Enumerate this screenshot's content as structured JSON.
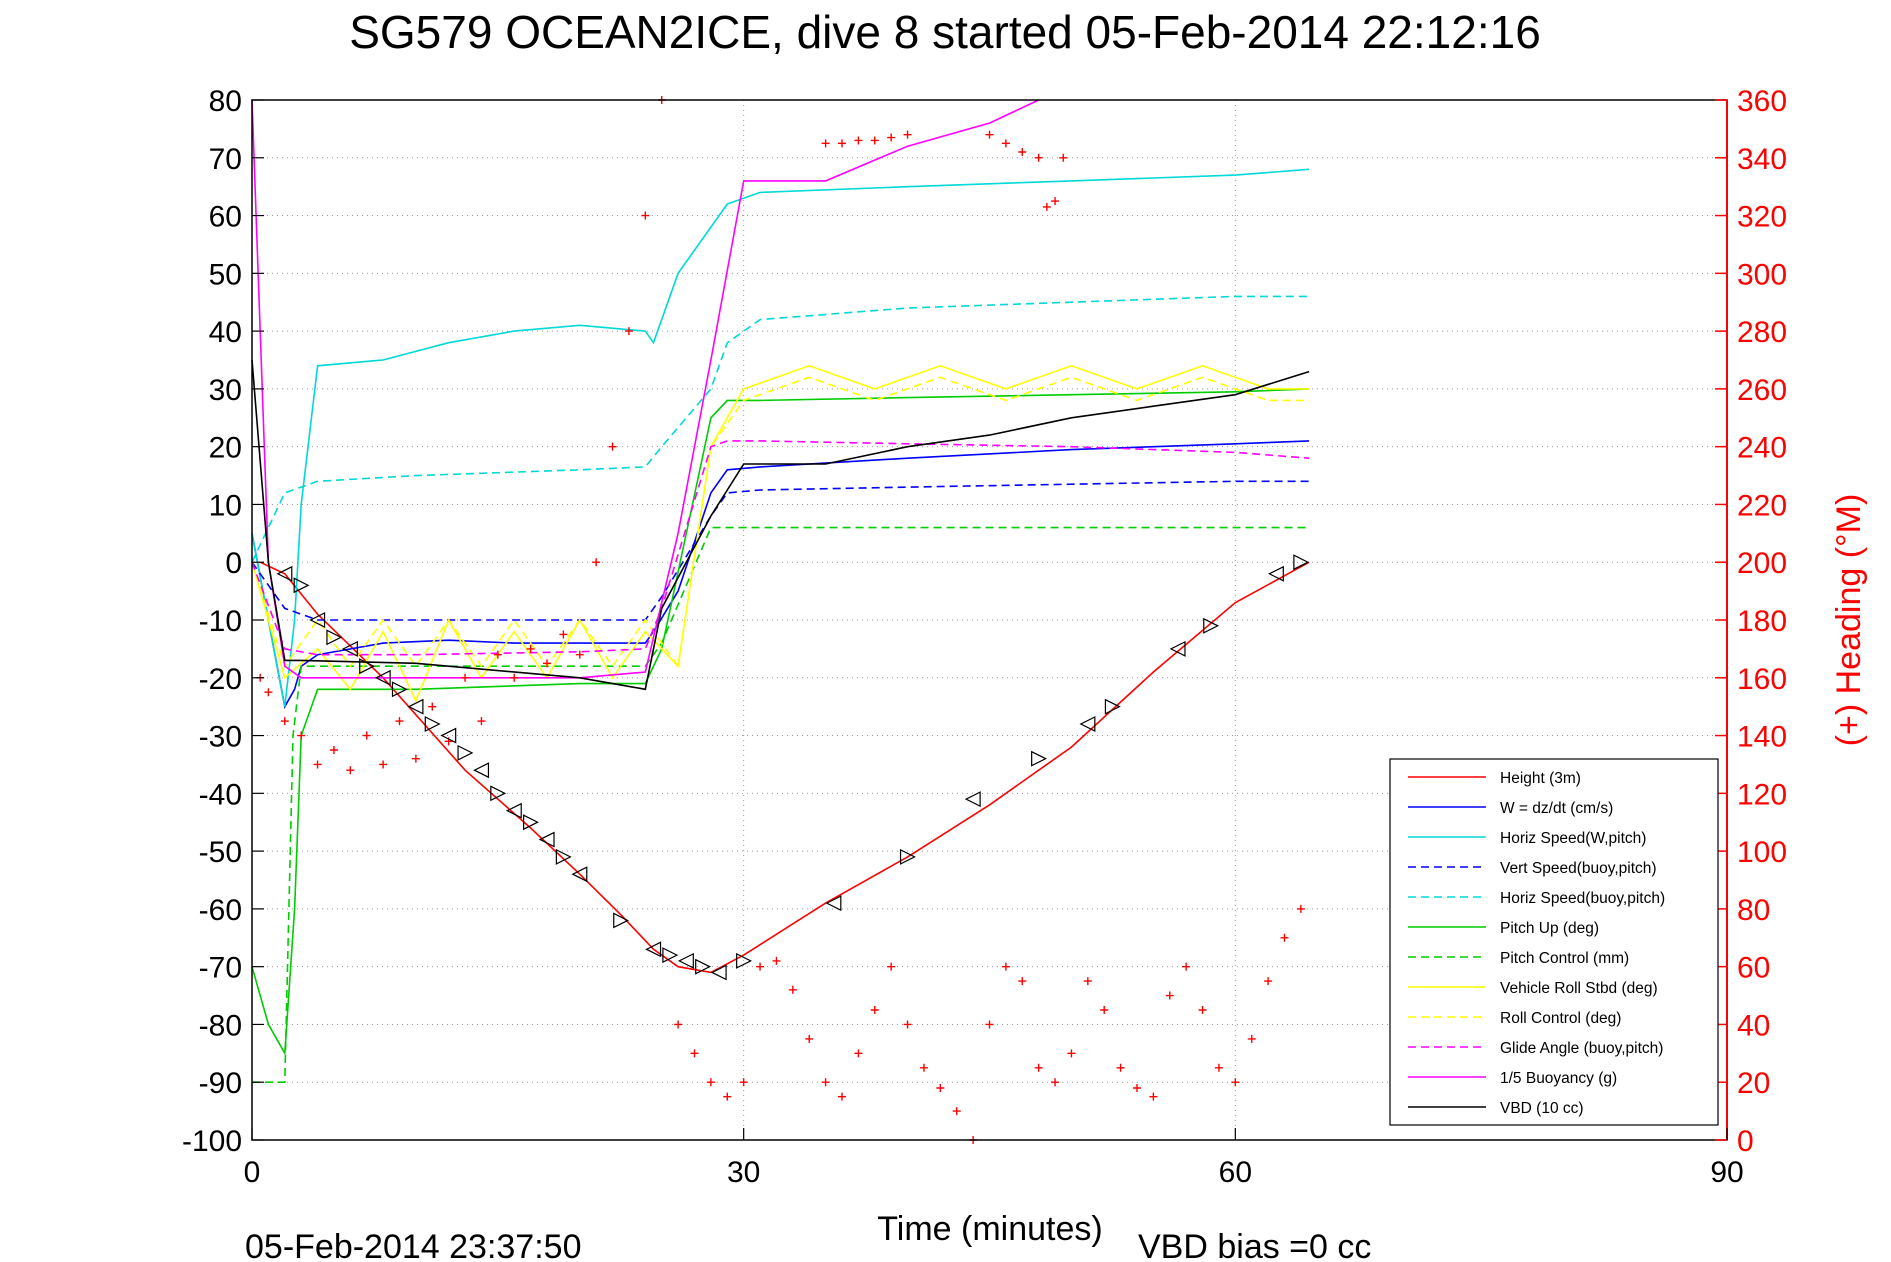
{
  "chart_data": {
    "type": "line",
    "title": "SG579 OCEAN2ICE, dive 8 started 05-Feb-2014 22:12:16",
    "xlabel": "Time (minutes)",
    "ylabel_right": "(+) Heading (°M)",
    "footer_date": "05-Feb-2014 23:37:50",
    "footer_note": "VBD bias =0 cc",
    "xlim": [
      0,
      90
    ],
    "ylim": [
      -100,
      80
    ],
    "y2lim": [
      0,
      360
    ],
    "x_ticks": [
      0,
      30,
      60,
      90
    ],
    "y_ticks": [
      80,
      70,
      60,
      50,
      40,
      30,
      20,
      10,
      0,
      -10,
      -20,
      -30,
      -40,
      -50,
      -60,
      -70,
      -80,
      -90,
      -100
    ],
    "y2_ticks": [
      360,
      340,
      320,
      300,
      280,
      260,
      240,
      220,
      200,
      180,
      160,
      140,
      120,
      100,
      80,
      60,
      40,
      20,
      0
    ],
    "grid": true,
    "legend_position": "bottom-right",
    "colors": {
      "axis_right": "#ff0000",
      "heading": "#ff0000"
    },
    "series": [
      {
        "name": "Height (3m)",
        "color": "#ff0000",
        "dash": false,
        "x": [
          0.5,
          2,
          4,
          8,
          13,
          17,
          20,
          22.5,
          24.5,
          26,
          28,
          30,
          35,
          40,
          45,
          50,
          55,
          60,
          64.5
        ],
        "y": [
          0,
          -2,
          -9,
          -20,
          -36,
          -46,
          -54,
          -61,
          -67,
          -70,
          -71,
          -68,
          -59,
          -51,
          -42,
          -32,
          -19,
          -7,
          0
        ]
      },
      {
        "name": "W = dz/dt (cm/s)",
        "color": "#0000ff",
        "dash": false,
        "x": [
          0,
          1,
          2,
          2.6,
          3,
          4,
          8,
          12,
          16,
          20,
          24,
          24.5,
          26,
          28,
          29,
          31,
          40,
          50,
          60,
          64.5
        ],
        "y": [
          5,
          -10,
          -25,
          -22,
          -18,
          -16,
          -14,
          -13.5,
          -14,
          -14,
          -14,
          -12,
          -5,
          12,
          16,
          16.5,
          18,
          19.5,
          20.5,
          21
        ]
      },
      {
        "name": "Horiz Speed(W,pitch)",
        "color": "#00d8d8",
        "dash": false,
        "x": [
          0,
          1,
          2,
          2.6,
          3,
          4,
          8,
          12,
          16,
          20,
          24,
          24.5,
          26,
          28,
          29,
          31,
          40,
          50,
          60,
          64.5
        ],
        "y": [
          5,
          -10,
          -25,
          -10,
          10,
          34,
          35,
          38,
          40,
          41,
          40,
          38,
          50,
          58,
          62,
          64,
          65,
          66,
          67,
          68
        ]
      },
      {
        "name": "Vert Speed(buoy,pitch)",
        "color": "#0000ff",
        "dash": true,
        "x": [
          0,
          2,
          4,
          10,
          20,
          24,
          25,
          28,
          29,
          31,
          40,
          50,
          60,
          64.5
        ],
        "y": [
          0,
          -8,
          -10,
          -10,
          -10,
          -10,
          -6,
          8,
          12,
          12.5,
          13,
          13.5,
          14,
          14
        ]
      },
      {
        "name": "Horiz Speed(buoy,pitch)",
        "color": "#00d8d8",
        "dash": true,
        "x": [
          0,
          2,
          4,
          10,
          20,
          24,
          25,
          28,
          29,
          31,
          40,
          50,
          60,
          64.5
        ],
        "y": [
          0,
          12,
          14,
          15,
          16,
          16.5,
          20,
          30,
          38,
          42,
          44,
          45,
          46,
          46
        ]
      },
      {
        "name": "Pitch Up (deg)",
        "color": "#00cc00",
        "dash": false,
        "x": [
          0,
          1,
          2,
          2.6,
          3,
          4,
          10,
          20,
          24,
          25,
          28,
          29,
          31,
          40,
          50,
          60,
          64.5
        ],
        "y": [
          -70,
          -80,
          -85,
          -60,
          -30,
          -22,
          -22,
          -21,
          -21,
          -15,
          25,
          28,
          28,
          28.5,
          29,
          29.5,
          30
        ]
      },
      {
        "name": "Pitch Control (mm)",
        "color": "#00cc00",
        "dash": true,
        "x": [
          0,
          2,
          2.5,
          3,
          24,
          25,
          28,
          30,
          64.5
        ],
        "y": [
          -90,
          -90,
          -30,
          -18,
          -18,
          -14,
          6,
          6,
          6
        ]
      },
      {
        "name": "Vehicle Roll Stbd (deg)",
        "color": "#ffff00",
        "dash": false,
        "x": [
          0,
          1,
          2,
          4,
          6,
          8,
          10,
          12,
          14,
          16,
          18,
          20,
          22,
          24,
          26,
          28,
          30,
          34,
          38,
          42,
          46,
          50,
          54,
          58,
          62,
          64.5
        ],
        "y": [
          0,
          -10,
          -20,
          -15,
          -22,
          -12,
          -24,
          -10,
          -20,
          -12,
          -20,
          -10,
          -20,
          -12,
          -18,
          20,
          30,
          34,
          30,
          34,
          30,
          34,
          30,
          34,
          30,
          30
        ]
      },
      {
        "name": "Roll Control (deg)",
        "color": "#ffff00",
        "dash": true,
        "x": [
          0,
          2,
          4,
          6,
          8,
          10,
          12,
          14,
          16,
          18,
          20,
          22,
          24,
          26,
          28,
          30,
          34,
          38,
          42,
          46,
          50,
          54,
          58,
          62,
          64.5
        ],
        "y": [
          0,
          -18,
          -10,
          -18,
          -10,
          -18,
          -10,
          -18,
          -10,
          -18,
          -10,
          -18,
          -10,
          -18,
          20,
          28,
          32,
          28,
          32,
          28,
          32,
          28,
          32,
          28,
          28
        ]
      },
      {
        "name": "Glide Angle (buoy,pitch)",
        "color": "#ff00ff",
        "dash": true,
        "x": [
          0,
          2,
          4,
          10,
          20,
          24,
          25,
          28,
          29,
          31,
          40,
          50,
          60,
          64.5
        ],
        "y": [
          0,
          -15,
          -16,
          -16,
          -15.5,
          -15,
          -8,
          20,
          21,
          21,
          20.5,
          20,
          19,
          18
        ]
      },
      {
        "name": "1/5 Buoyancy (g)",
        "color": "#ff00ff",
        "dash": false,
        "x": [
          0,
          1,
          2,
          3,
          10,
          20,
          24,
          26,
          28,
          30,
          35,
          40,
          45,
          48
        ],
        "y": [
          80,
          0,
          -18,
          -20,
          -20,
          -20,
          -19,
          5,
          35,
          66,
          66,
          72,
          76,
          80
        ]
      },
      {
        "name": "VBD (10 cc)",
        "color": "#000000",
        "dash": false,
        "x": [
          0,
          1,
          2,
          2.5,
          3,
          10,
          20,
          24,
          25,
          28,
          30,
          35,
          40,
          45,
          50,
          55,
          60,
          64.5
        ],
        "y": [
          35,
          0,
          -17,
          -17,
          -17,
          -17.5,
          -20,
          -22,
          -8,
          8,
          17,
          17,
          20,
          22,
          25,
          27,
          29,
          33
        ]
      }
    ],
    "heading_points": {
      "name": "(+) Heading (°M)",
      "x": [
        0.5,
        1,
        2,
        3,
        4,
        5,
        6,
        7,
        8,
        9,
        10,
        11,
        12,
        13,
        14,
        15,
        16,
        17,
        18,
        19,
        20,
        21,
        22,
        23,
        24,
        25,
        26,
        27,
        28,
        29,
        30,
        31,
        32,
        33,
        34,
        35,
        36,
        37,
        38,
        39,
        40,
        41,
        42,
        43,
        44,
        45,
        46,
        47,
        48,
        49,
        50,
        51,
        52,
        53,
        54,
        55,
        56,
        57,
        58,
        59,
        60,
        61,
        62,
        63,
        64
      ],
      "y": [
        160,
        155,
        145,
        140,
        130,
        135,
        128,
        140,
        130,
        145,
        132,
        150,
        138,
        160,
        145,
        168,
        160,
        170,
        165,
        175,
        168,
        200,
        240,
        280,
        320,
        360,
        40,
        30,
        20,
        15,
        20,
        60,
        62,
        52,
        35,
        20,
        15,
        30,
        45,
        60,
        40,
        25,
        18,
        10,
        0,
        40,
        60,
        55,
        25,
        20,
        30,
        55,
        45,
        25,
        18,
        15,
        50,
        60,
        45,
        25,
        20,
        35,
        55,
        70,
        80
      ]
    },
    "heading_top_cluster": {
      "x": [
        35,
        36,
        37,
        38,
        39,
        40,
        45,
        46,
        47,
        48,
        48.5,
        49,
        49.5
      ],
      "y": [
        345,
        345,
        346,
        346,
        347,
        348,
        348,
        345,
        342,
        340,
        323,
        325,
        340
      ]
    },
    "depth_markers": {
      "x": [
        2,
        3,
        4,
        5,
        6,
        7,
        8,
        9,
        10,
        11,
        12,
        13,
        14,
        15,
        16,
        17,
        18,
        19,
        20,
        22.5,
        24.5,
        25.5,
        26.5,
        27.5,
        28.5,
        30,
        35.5,
        40,
        44,
        48,
        51,
        52.5,
        56.5,
        58.5,
        62.5,
        64
      ],
      "y": [
        -2,
        -4,
        -10,
        -13,
        -15,
        -18,
        -20,
        -22,
        -25,
        -28,
        -30,
        -33,
        -36,
        -40,
        -43,
        -45,
        -48,
        -51,
        -54,
        -62,
        -67,
        -68,
        -69,
        -70,
        -71,
        -69,
        -59,
        -51,
        -41,
        -34,
        -28,
        -25,
        -15,
        -11,
        -2,
        0
      ]
    }
  }
}
